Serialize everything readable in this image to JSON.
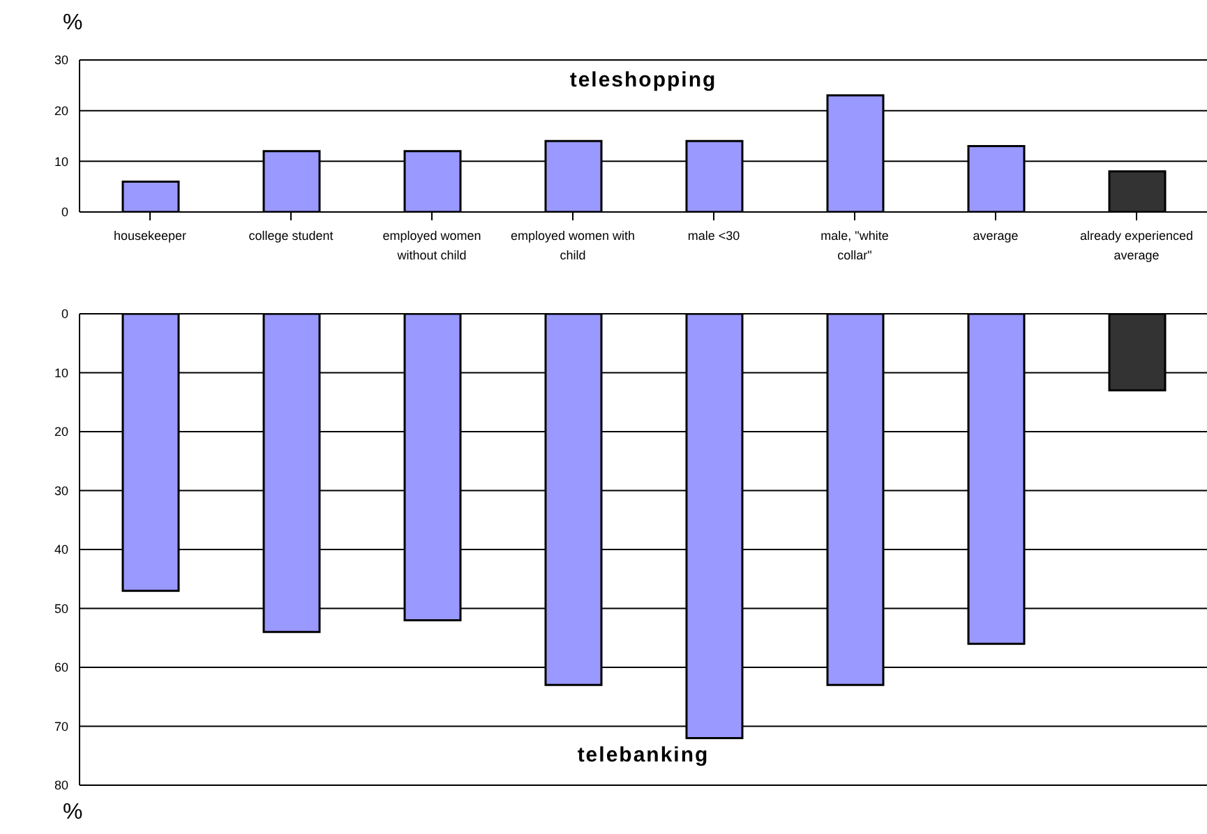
{
  "chart_data": [
    {
      "type": "bar",
      "title": "teleshopping",
      "ylabel": "%",
      "categories": [
        "housekeeper",
        "college student",
        "employed women without child",
        "employed women with child",
        "male <30",
        "male, \"white collar\"",
        "average",
        "already experienced average"
      ],
      "values": [
        6,
        12,
        12,
        14,
        14,
        23,
        13,
        8
      ],
      "colors": [
        "#9999ff",
        "#9999ff",
        "#9999ff",
        "#9999ff",
        "#9999ff",
        "#9999ff",
        "#9999ff",
        "#333333"
      ],
      "ylim": [
        0,
        30
      ],
      "yticks": [
        0,
        10,
        20,
        30
      ],
      "grid": "y",
      "legend": false
    },
    {
      "type": "bar",
      "title": "telebanking",
      "ylabel": "%",
      "categories": [
        null,
        null,
        null,
        null,
        null,
        null,
        null,
        null
      ],
      "values": [
        47,
        54,
        52,
        63,
        72,
        63,
        56,
        13
      ],
      "colors": [
        "#9999ff",
        "#9999ff",
        "#9999ff",
        "#9999ff",
        "#9999ff",
        "#9999ff",
        "#9999ff",
        "#333333"
      ],
      "ylim": [
        80,
        0
      ],
      "yticks": [
        0,
        10,
        20,
        30,
        40,
        50,
        60,
        70,
        80
      ],
      "grid": "y",
      "legend": false,
      "tick_labels": "y"
    }
  ]
}
